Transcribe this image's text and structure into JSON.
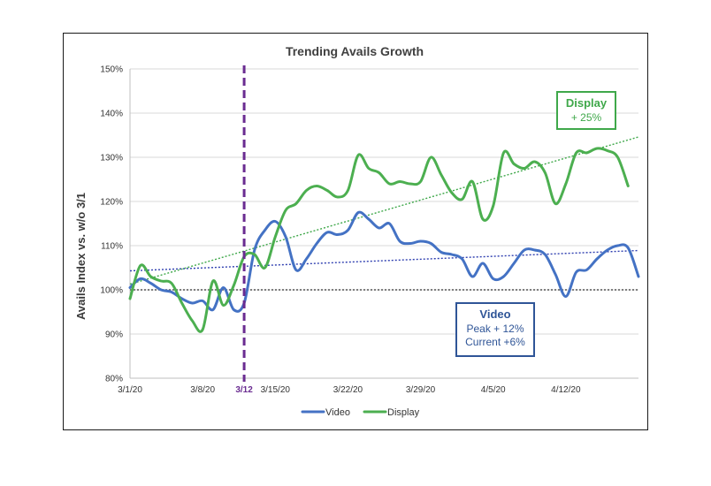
{
  "chart_data": {
    "type": "line",
    "title": "Trending Avails Growth",
    "ylabel": "Avails Index vs. w/o 3/1",
    "xlabel": "",
    "ylim": [
      80,
      150
    ],
    "yticks": [
      80,
      90,
      100,
      110,
      120,
      130,
      140,
      150
    ],
    "ytick_labels": [
      "80%",
      "90%",
      "100%",
      "110%",
      "120%",
      "130%",
      "140%",
      "150%"
    ],
    "xticks": [
      {
        "day": 0,
        "label": "3/1/20"
      },
      {
        "day": 7,
        "label": "3/8/20"
      },
      {
        "day": 14,
        "label": "3/15/20"
      },
      {
        "day": 21,
        "label": "3/22/20"
      },
      {
        "day": 28,
        "label": "3/29/20"
      },
      {
        "day": 35,
        "label": "4/5/20"
      },
      {
        "day": 42,
        "label": "4/12/20"
      }
    ],
    "x_dates": [
      "3/1",
      "3/2",
      "3/3",
      "3/4",
      "3/5",
      "3/6",
      "3/7",
      "3/8",
      "3/9",
      "3/10",
      "3/11",
      "3/12",
      "3/13",
      "3/14",
      "3/15",
      "3/16",
      "3/17",
      "3/18",
      "3/19",
      "3/20",
      "3/21",
      "3/22",
      "3/23",
      "3/24",
      "3/25",
      "3/26",
      "3/27",
      "3/28",
      "3/29",
      "3/30",
      "3/31",
      "4/1",
      "4/2",
      "4/3",
      "4/4",
      "4/5",
      "4/6",
      "4/7",
      "4/8",
      "4/9",
      "4/10",
      "4/11",
      "4/12",
      "4/13",
      "4/14",
      "4/15",
      "4/16",
      "4/17",
      "4/18",
      "4/19"
    ],
    "series": [
      {
        "name": "Video",
        "color": "#4472c4",
        "values": [
          100.5,
          102.5,
          101.5,
          100,
          99.5,
          98,
          97,
          97.5,
          95.5,
          100.5,
          95.5,
          97,
          109,
          113.5,
          115.5,
          112,
          104.5,
          107,
          110.5,
          113,
          112.5,
          113.5,
          117.5,
          116,
          114,
          115,
          111,
          110.5,
          111,
          110.5,
          108.5,
          108,
          107,
          103,
          106,
          102.5,
          103,
          106,
          109,
          109,
          108,
          103.5,
          98.5,
          104,
          104.5,
          107,
          109,
          110,
          109.5,
          103
        ]
      },
      {
        "name": "Display",
        "color": "#4caf50",
        "values": [
          98,
          105.5,
          103,
          102,
          101.5,
          97,
          93,
          91,
          102,
          96.5,
          101,
          107.5,
          108,
          105,
          112,
          118,
          119.5,
          122.5,
          123.5,
          122.5,
          121,
          122.5,
          130.5,
          127.5,
          126.5,
          124,
          124.5,
          124,
          124.5,
          130,
          126,
          122,
          120.5,
          124.5,
          116,
          119,
          131,
          128.5,
          127.5,
          129,
          126.5,
          119.5,
          124,
          131,
          131,
          132,
          131.5,
          130,
          123.5,
          null
        ]
      }
    ],
    "trendlines": [
      {
        "series": "Video",
        "start": 104.3,
        "end": 108.9,
        "color": "#2f3fb0"
      },
      {
        "series": "Display",
        "start": 101.3,
        "end": 134.6,
        "color": "#3fa84a"
      }
    ],
    "baseline": {
      "value": 100,
      "color": "#555555"
    },
    "event_marker": {
      "day": 11,
      "label": "3/12",
      "color": "#6a2c91"
    },
    "legend_position": "bottom",
    "grid": "horizontal",
    "annotations": [
      {
        "name": "display",
        "color": "#3fa84a",
        "title": "Display",
        "lines": [
          "+ 25%"
        ]
      },
      {
        "name": "video",
        "color": "#2f5597",
        "title": "Video",
        "lines": [
          "Peak + 12%",
          "Current +6%"
        ]
      }
    ]
  }
}
